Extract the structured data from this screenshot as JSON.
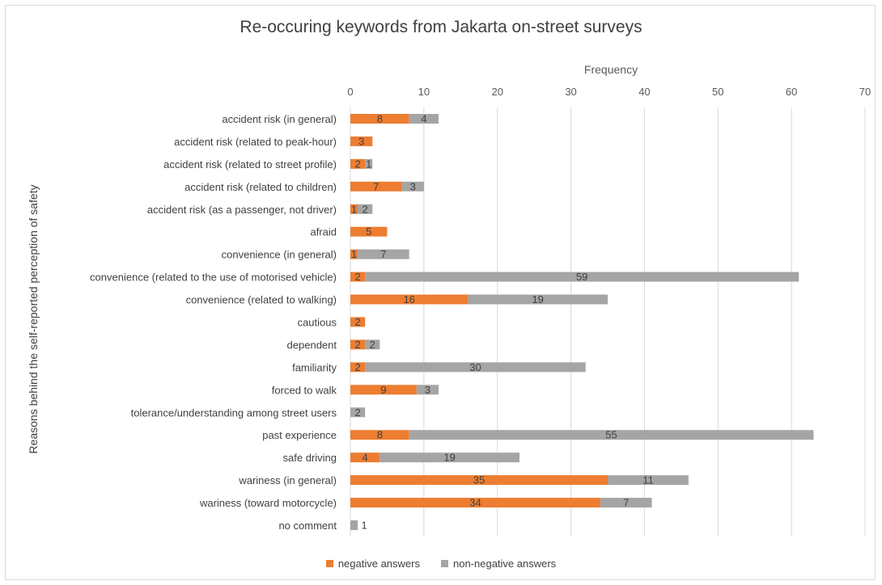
{
  "chart_data": {
    "type": "bar",
    "orientation": "horizontal",
    "stacked": true,
    "title": "Re-occuring keywords from Jakarta on-street surveys",
    "xlabel": "Frequency",
    "ylabel": "Reasons behind the self-reported perception of safety",
    "xlim": [
      0,
      70
    ],
    "xticks": [
      0,
      10,
      20,
      30,
      40,
      50,
      60,
      70
    ],
    "grid": true,
    "legend_position": "bottom",
    "categories": [
      "accident risk (in general)",
      "accident risk (related to peak-hour)",
      "accident risk (related to street profile)",
      "accident risk (related to children)",
      "accident risk (as a passenger, not driver)",
      "afraid",
      "convenience (in general)",
      "convenience (related to the use of motorised vehicle)",
      "convenience (related to walking)",
      "cautious",
      "dependent",
      "familiarity",
      "forced to walk",
      "tolerance/understanding among street users",
      "past experience",
      "safe driving",
      "wariness (in general)",
      "wariness (toward motorcycle)",
      "no comment"
    ],
    "series": [
      {
        "name": "negative answers",
        "color": "#ed7d31",
        "values": [
          8,
          3,
          2,
          7,
          1,
          5,
          1,
          2,
          16,
          2,
          2,
          2,
          9,
          0,
          8,
          4,
          35,
          34,
          0
        ]
      },
      {
        "name": "non-negative answers",
        "color": "#a5a5a5",
        "values": [
          4,
          0,
          1,
          3,
          2,
          0,
          7,
          59,
          19,
          0,
          2,
          30,
          3,
          2,
          55,
          19,
          11,
          7,
          1
        ]
      }
    ]
  }
}
